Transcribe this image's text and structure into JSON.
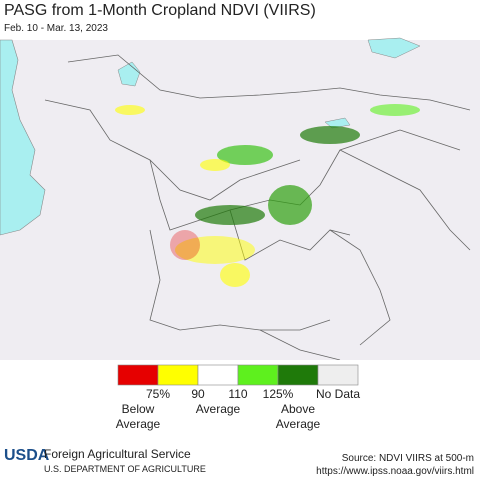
{
  "header": {
    "title": "PASG from 1-Month Cropland NDVI (VIIRS)",
    "subtitle": "Feb. 10 - Mar. 13, 2023"
  },
  "legend": {
    "colors": [
      "#e60000",
      "#ffff00",
      "#ffffff",
      "#5ef01e",
      "#1f7a0a",
      "#eeeeee"
    ],
    "ticks": [
      "75%",
      "90",
      "110",
      "125%"
    ],
    "no_data": "No Data",
    "groups": [
      "Below Average",
      "Average",
      "Above Average"
    ]
  },
  "footer": {
    "logo": "USDA",
    "agency": "Foreign Agricultural Service",
    "department": "U.S. DEPARTMENT OF AGRICULTURE",
    "source": "Source: NDVI VIIRS at 500-m",
    "url": "https://www.ipss.noaa.gov/viirs.html"
  }
}
